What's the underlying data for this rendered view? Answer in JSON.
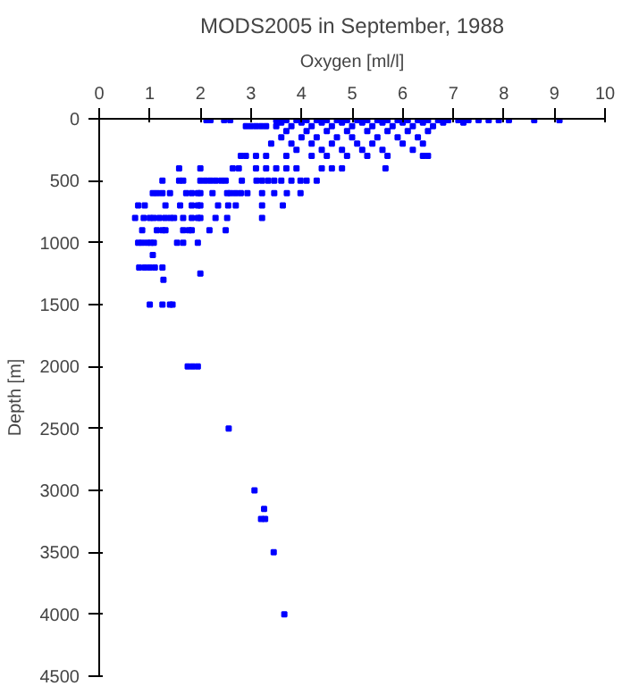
{
  "chart_data": {
    "type": "scatter",
    "title": "MODS2005 in September, 1988",
    "xlabel": "Oxygen [ml/l]",
    "ylabel": "Depth [m]",
    "xlim": [
      0,
      10
    ],
    "xticks": [
      0,
      1,
      2,
      3,
      4,
      5,
      6,
      7,
      8,
      9,
      10
    ],
    "ylim": [
      4500,
      0
    ],
    "yticks": [
      0,
      500,
      1000,
      1500,
      2000,
      2500,
      3000,
      3500,
      4000,
      4500
    ],
    "marker": "square",
    "grid": false,
    "series": [
      {
        "color": "#0000ff",
        "x": [
          2.12,
          2.2,
          2.47,
          2.59,
          3.5,
          3.7,
          3.9,
          4.1,
          4.3,
          4.5,
          4.7,
          4.9,
          5.1,
          5.3,
          5.5,
          5.7,
          5.9,
          6.1,
          6.3,
          6.5,
          6.7,
          6.9,
          7.1,
          7.3,
          7.5,
          7.7,
          7.9,
          8.1,
          8.6,
          9.1,
          3.6,
          4.0,
          4.4,
          4.8,
          5.2,
          5.6,
          6.0,
          6.4,
          6.8,
          7.2,
          2.9,
          3.0,
          3.1,
          3.2,
          3.3,
          3.5,
          3.8,
          4.2,
          4.6,
          5.0,
          5.4,
          5.8,
          6.2,
          6.6,
          3.7,
          4.1,
          4.5,
          4.9,
          5.3,
          5.7,
          6.1,
          6.5,
          3.6,
          4.0,
          4.3,
          4.7,
          5.0,
          5.5,
          5.9,
          6.3,
          3.4,
          3.8,
          4.2,
          4.6,
          5.1,
          5.4,
          6.0,
          6.4,
          3.9,
          4.4,
          4.8,
          5.2,
          5.6,
          6.2,
          2.8,
          2.9,
          3.1,
          3.3,
          3.7,
          4.2,
          4.5,
          4.9,
          5.3,
          5.7,
          6.4,
          6.5,
          1.58,
          2.0,
          2.64,
          2.76,
          3.1,
          3.3,
          3.5,
          3.7,
          3.9,
          4.4,
          4.6,
          4.8,
          5.66,
          1.25,
          1.58,
          1.66,
          2.0,
          2.1,
          2.2,
          2.3,
          2.41,
          2.5,
          2.82,
          3.11,
          3.22,
          3.34,
          3.46,
          3.6,
          3.8,
          3.98,
          4.1,
          4.3,
          1.06,
          1.15,
          1.25,
          1.4,
          1.72,
          1.83,
          1.95,
          2.0,
          2.24,
          2.53,
          2.6,
          2.7,
          2.8,
          2.93,
          3.22,
          3.46,
          3.71,
          3.98,
          0.77,
          0.9,
          1.31,
          1.6,
          1.83,
          1.95,
          2.0,
          2.35,
          2.55,
          2.7,
          3.22,
          3.63,
          0.71,
          0.88,
          1.0,
          1.08,
          1.19,
          1.3,
          1.4,
          1.48,
          1.66,
          1.83,
          1.95,
          2.0,
          2.3,
          2.53,
          3.22,
          0.85,
          1.14,
          1.25,
          1.31,
          1.66,
          1.77,
          1.83,
          2.18,
          2.5,
          0.77,
          0.85,
          0.95,
          1.02,
          1.08,
          1.54,
          1.66,
          1.95,
          1.06,
          0.79,
          0.9,
          1.0,
          1.1,
          1.25,
          2.0,
          1.27,
          1.0,
          1.25,
          1.4,
          1.45,
          1.75,
          1.85,
          1.95,
          2.56,
          3.07,
          3.26,
          3.2,
          3.28,
          3.45,
          3.66
        ],
        "values": [
          10,
          10,
          10,
          10,
          10,
          10,
          10,
          10,
          10,
          10,
          10,
          10,
          10,
          10,
          10,
          10,
          10,
          10,
          10,
          10,
          10,
          10,
          10,
          10,
          10,
          10,
          10,
          10,
          10,
          10,
          30,
          30,
          30,
          30,
          30,
          30,
          30,
          30,
          30,
          30,
          60,
          60,
          60,
          60,
          60,
          60,
          60,
          60,
          60,
          60,
          60,
          60,
          60,
          60,
          100,
          100,
          100,
          100,
          100,
          100,
          100,
          100,
          150,
          150,
          150,
          150,
          150,
          150,
          150,
          150,
          200,
          200,
          200,
          200,
          200,
          200,
          200,
          200,
          250,
          250,
          250,
          250,
          250,
          250,
          300,
          300,
          300,
          300,
          300,
          300,
          300,
          300,
          300,
          300,
          300,
          300,
          400,
          400,
          400,
          400,
          400,
          400,
          400,
          400,
          400,
          400,
          400,
          400,
          400,
          500,
          500,
          500,
          500,
          500,
          500,
          500,
          500,
          500,
          500,
          500,
          500,
          500,
          500,
          500,
          500,
          500,
          500,
          500,
          600,
          600,
          600,
          600,
          600,
          600,
          600,
          600,
          600,
          600,
          600,
          600,
          600,
          600,
          600,
          600,
          600,
          600,
          700,
          700,
          700,
          700,
          700,
          700,
          700,
          700,
          700,
          700,
          700,
          700,
          800,
          800,
          800,
          800,
          800,
          800,
          800,
          800,
          800,
          800,
          800,
          800,
          800,
          800,
          800,
          900,
          900,
          900,
          900,
          900,
          900,
          900,
          900,
          900,
          1000,
          1000,
          1000,
          1000,
          1000,
          1000,
          1000,
          1000,
          1100,
          1200,
          1200,
          1200,
          1200,
          1200,
          1250,
          1300,
          1500,
          1500,
          1500,
          1500,
          2000,
          2000,
          2000,
          2500,
          3000,
          3150,
          3230,
          3230,
          3500,
          4000
        ]
      }
    ]
  }
}
